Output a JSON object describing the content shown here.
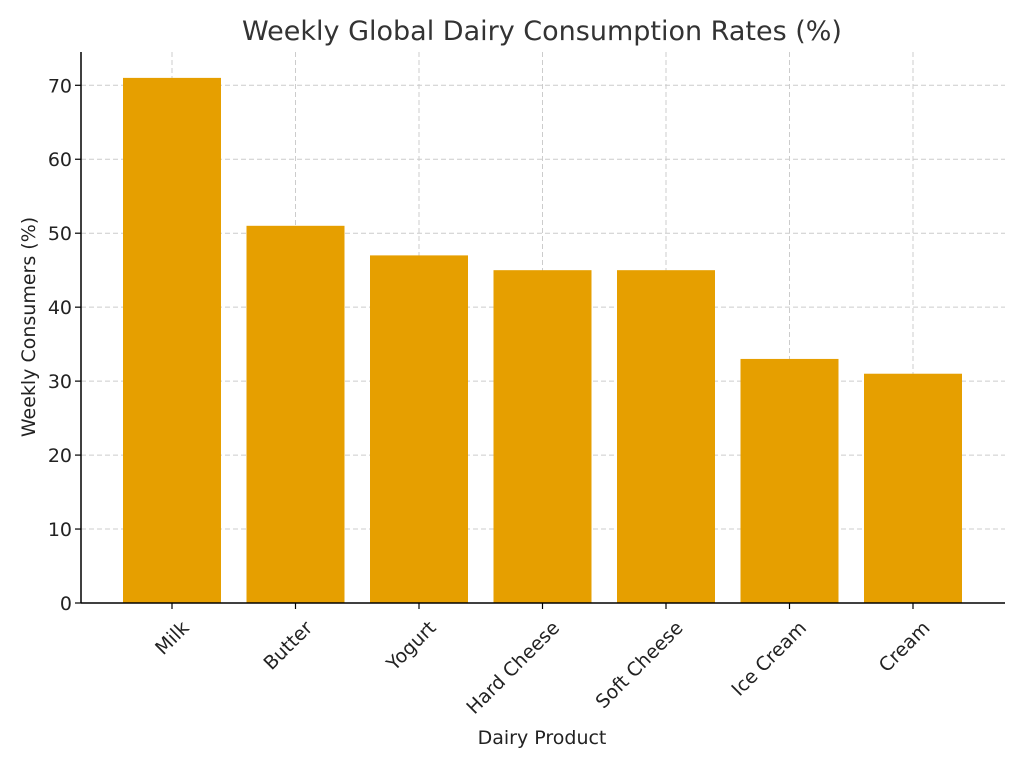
{
  "chart_data": {
    "type": "bar",
    "title": "Weekly Global Dairy Consumption Rates (%)",
    "xlabel": "Dairy Product",
    "ylabel": "Weekly Consumers (%)",
    "categories": [
      "Milk",
      "Butter",
      "Yogurt",
      "Hard Cheese",
      "Soft Cheese",
      "Ice Cream",
      "Cream"
    ],
    "values": [
      71,
      51,
      47,
      45,
      45,
      33,
      31
    ],
    "ylim": [
      0,
      74.5
    ],
    "yticks": [
      0,
      10,
      20,
      30,
      40,
      50,
      60,
      70
    ],
    "grid": true,
    "bar_color": "#E69F00"
  }
}
